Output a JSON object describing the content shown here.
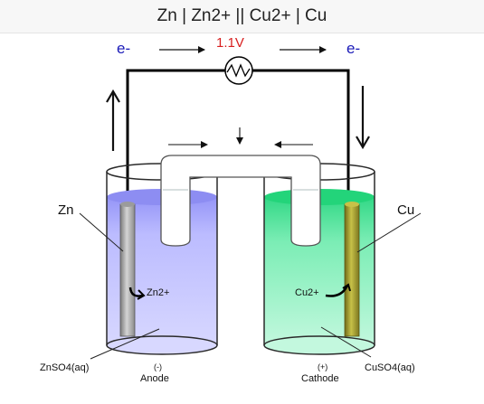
{
  "title": "Zn | Zn2+ || Cu2+ | Cu",
  "electron_left": "e-",
  "electron_right": "e-",
  "voltage": "1.1V",
  "anode": {
    "metal": "Zn",
    "ion": "Zn2+",
    "solution": "ZnSO4(aq)",
    "sign": "(-)",
    "name": "Anode",
    "color": "#a9a9ff"
  },
  "cathode": {
    "metal": "Cu",
    "ion": "Cu2+",
    "solution": "CuSO4(aq)",
    "sign": "(+)",
    "name": "Cathode",
    "color": "#36e08e"
  },
  "icons": [
    "voltmeter-icon",
    "electron-flow-arrow",
    "ion-flow-arrow"
  ]
}
